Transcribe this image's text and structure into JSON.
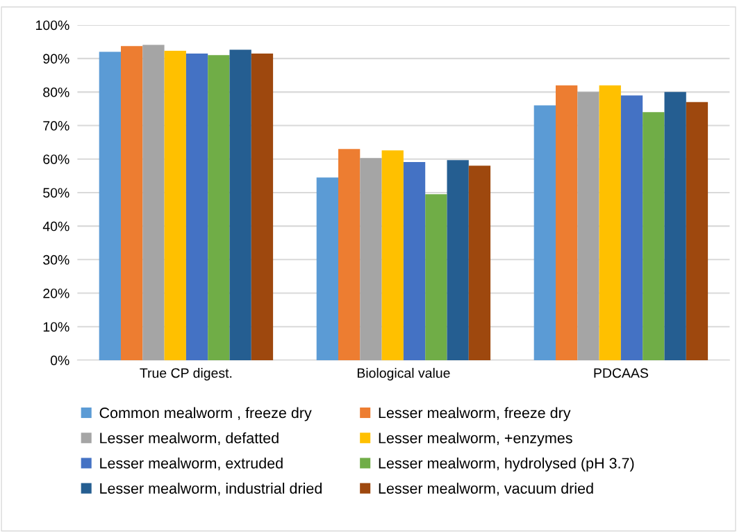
{
  "chart_data": {
    "type": "bar",
    "categories": [
      "True CP digest.",
      "Biological value",
      "PDCAAS"
    ],
    "series": [
      {
        "name": "Common mealworm , freeze dry",
        "color": "#5b9bd5",
        "values": [
          92.0,
          54.5,
          76
        ]
      },
      {
        "name": "Lesser mealworm, freeze dry",
        "color": "#ed7d31",
        "values": [
          93.7,
          63.0,
          82
        ]
      },
      {
        "name": "Lesser mealworm, defatted",
        "color": "#a5a5a5",
        "values": [
          94.1,
          60.3,
          80
        ]
      },
      {
        "name": "Lesser mealworm, +enzymes",
        "color": "#ffc000",
        "values": [
          92.3,
          62.6,
          82
        ]
      },
      {
        "name": "Lesser mealworm, extruded",
        "color": "#4472c4",
        "values": [
          91.5,
          59.1,
          79
        ]
      },
      {
        "name": "Lesser mealworm, hydrolysed (pH 3.7)",
        "color": "#70ad47",
        "values": [
          91.0,
          49.5,
          74
        ]
      },
      {
        "name": "Lesser mealworm, industrial dried",
        "color": "#255e91",
        "values": [
          92.6,
          59.7,
          80
        ]
      },
      {
        "name": "Lesser mealworm, vacuum dried",
        "color": "#9e480e",
        "values": [
          91.5,
          58.0,
          77
        ]
      }
    ],
    "ylim": [
      0,
      100
    ],
    "yticks": [
      {
        "value": 0,
        "label": "0%"
      },
      {
        "value": 10,
        "label": "10%"
      },
      {
        "value": 20,
        "label": "20%"
      },
      {
        "value": 30,
        "label": "30%"
      },
      {
        "value": 40,
        "label": "40%"
      },
      {
        "value": 50,
        "label": "50%"
      },
      {
        "value": 60,
        "label": "60%"
      },
      {
        "value": 70,
        "label": "70%"
      },
      {
        "value": 80,
        "label": "80%"
      },
      {
        "value": 90,
        "label": "90%"
      },
      {
        "value": 100,
        "label": "100%"
      }
    ],
    "grid": "y",
    "legend": "bottom"
  }
}
